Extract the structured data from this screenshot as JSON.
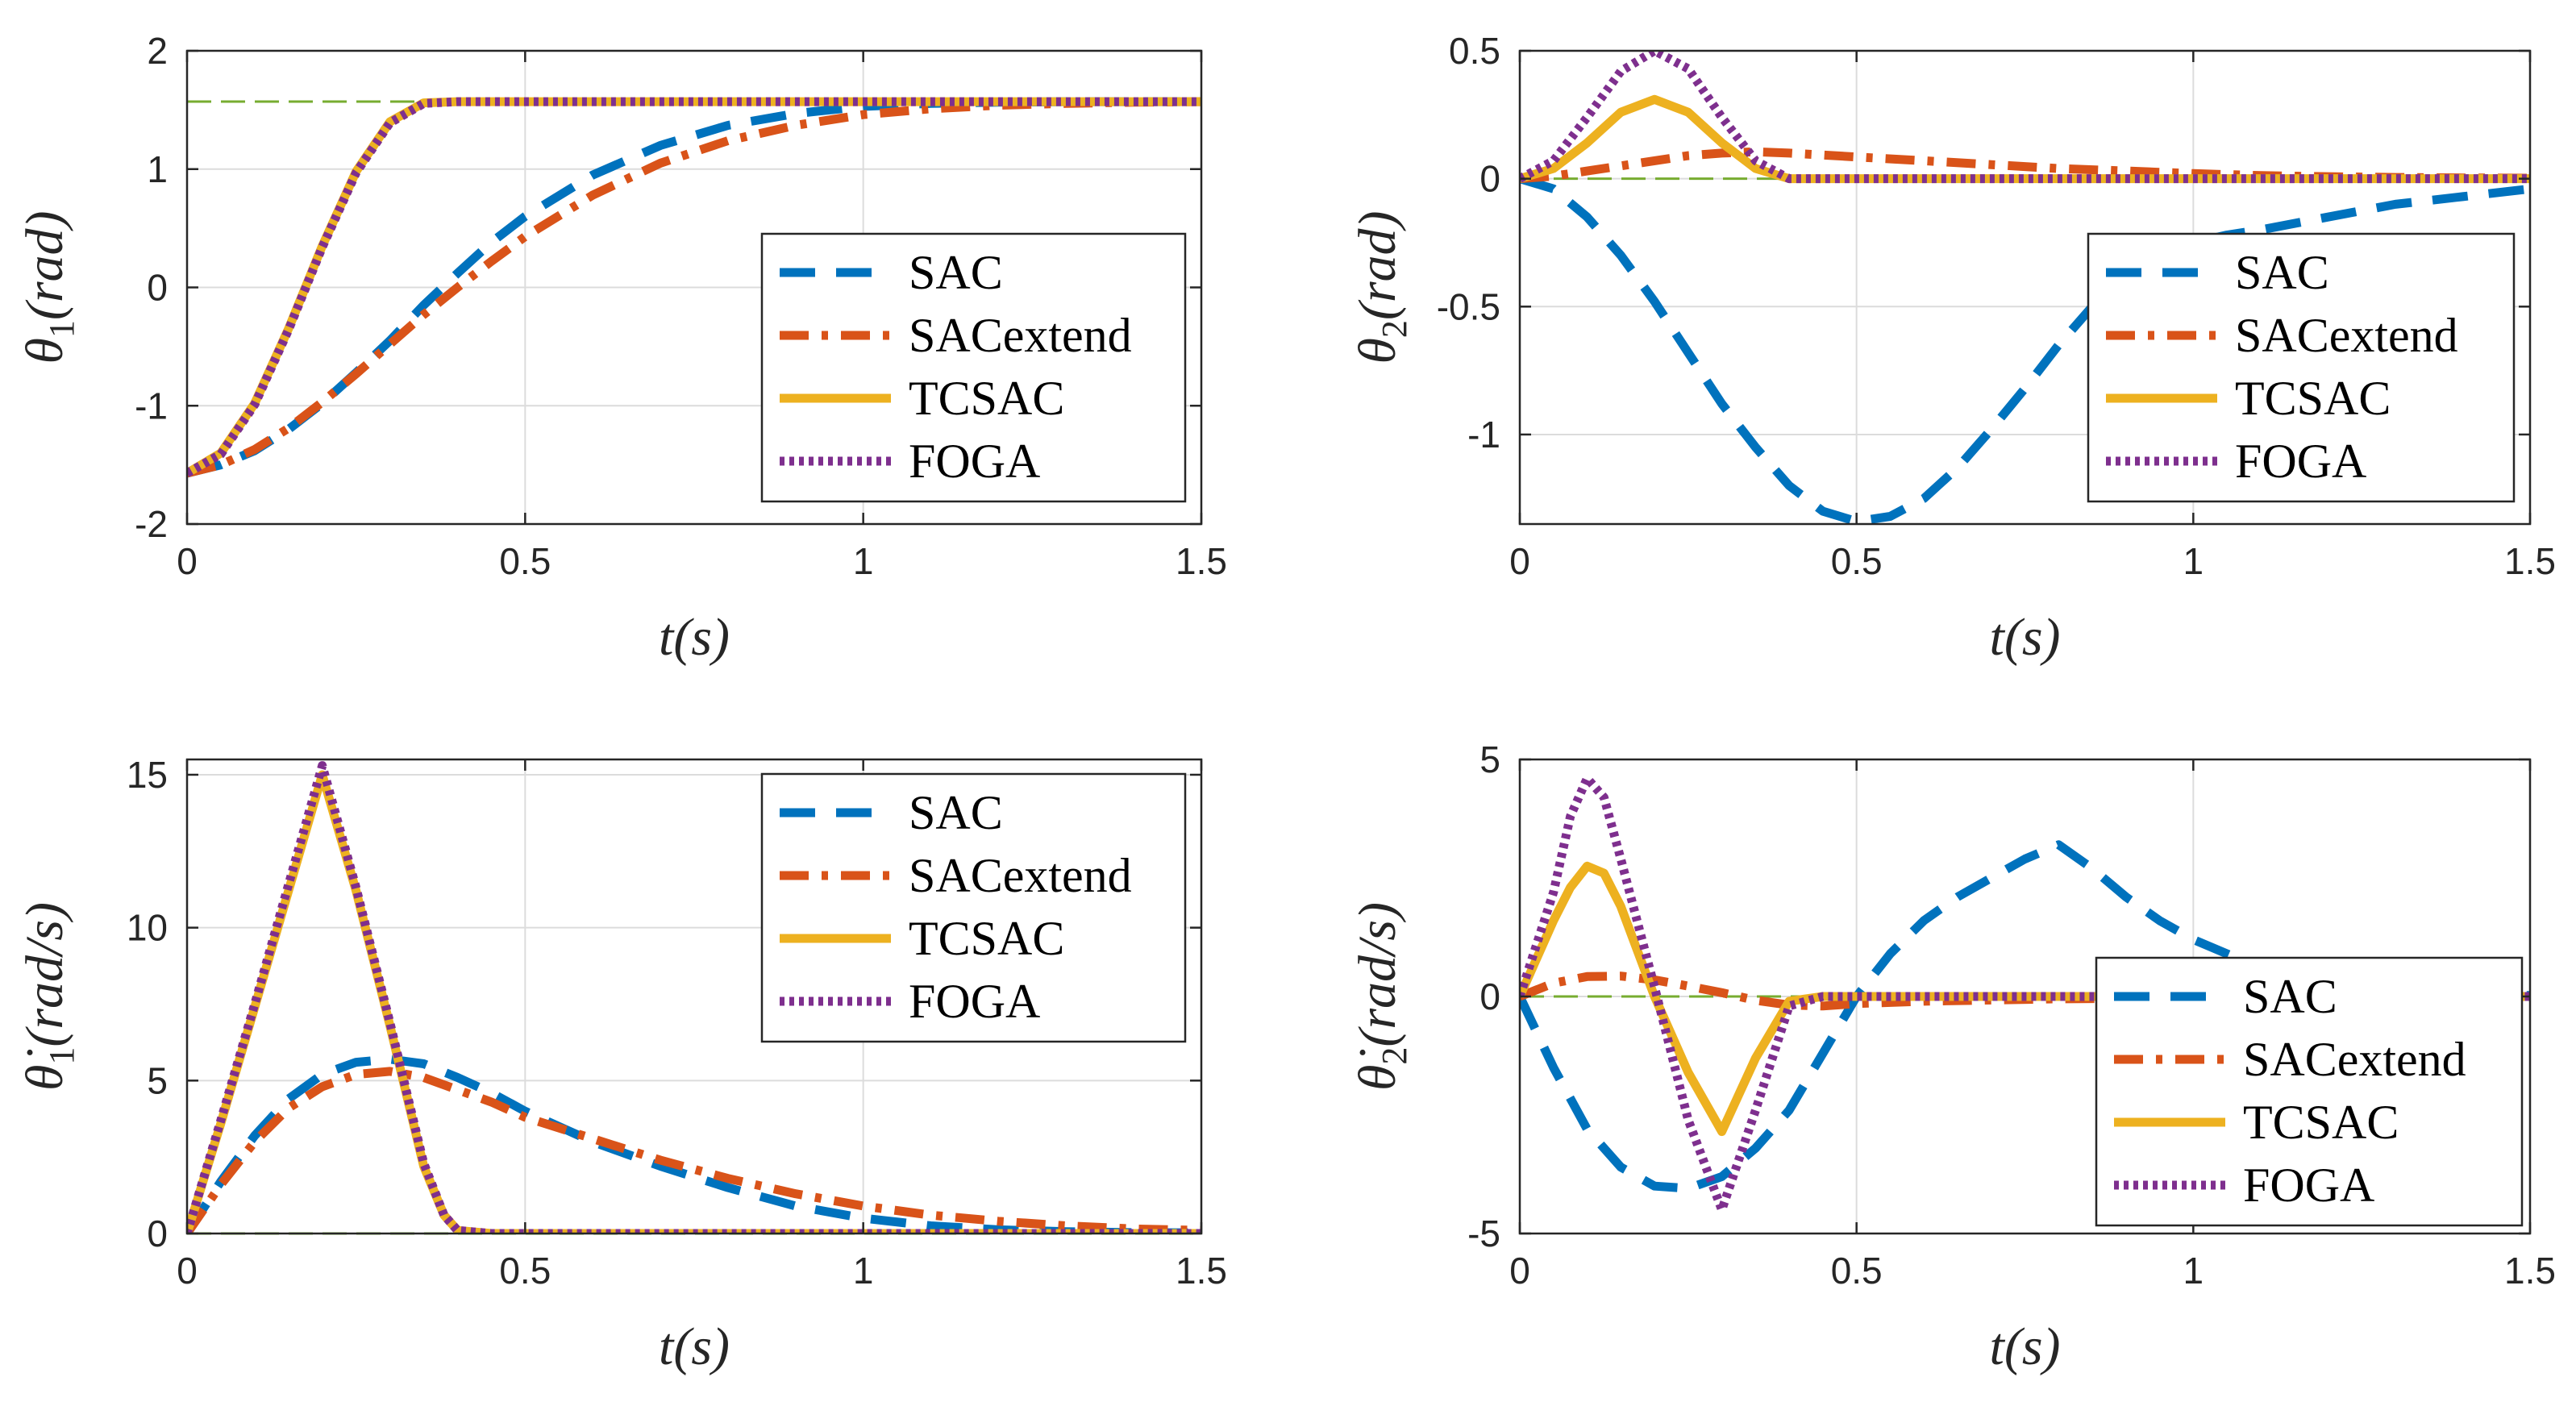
{
  "colors": {
    "SAC": "#0072BD",
    "SACextend": "#D95319",
    "TCSAC": "#EDB120",
    "FOGA": "#7E2F8E",
    "reference": "#77AC30",
    "grid": "#dcdcdc",
    "axis": "#262626"
  },
  "chart_data": [
    {
      "type": "line",
      "id": "theta1",
      "title": "",
      "xlabel": "t(s)",
      "ylabel": "θ1(rad)",
      "ylabel_symbol": "θ",
      "ylabel_sub": "1",
      "ylabel_unit": "(rad)",
      "xlim": [
        0,
        1.5
      ],
      "ylim": [
        -2,
        2
      ],
      "xticks": [
        0,
        0.5,
        1,
        1.5
      ],
      "xtick_labels": [
        "0",
        "0.5",
        "1",
        "1.5"
      ],
      "yticks": [
        -2,
        -1,
        0,
        1,
        2
      ],
      "ytick_labels": [
        "-2",
        "-1",
        "0",
        "1",
        "2"
      ],
      "grid": true,
      "legend": "bottom-right",
      "reference": 1.571,
      "series": [
        {
          "name": "SAC",
          "style": "dashed",
          "x": [
            0,
            0.05,
            0.1,
            0.15,
            0.2,
            0.25,
            0.3,
            0.35,
            0.4,
            0.45,
            0.5,
            0.6,
            0.7,
            0.8,
            0.9,
            1.0,
            1.1,
            1.2,
            1.3,
            1.4,
            1.5
          ],
          "y": [
            -1.57,
            -1.5,
            -1.38,
            -1.2,
            -0.98,
            -0.72,
            -0.45,
            -0.15,
            0.12,
            0.38,
            0.6,
            0.95,
            1.2,
            1.37,
            1.47,
            1.53,
            1.555,
            1.565,
            1.57,
            1.57,
            1.57
          ]
        },
        {
          "name": "SACextend",
          "style": "dashdot",
          "x": [
            0,
            0.05,
            0.1,
            0.15,
            0.2,
            0.25,
            0.3,
            0.35,
            0.4,
            0.45,
            0.5,
            0.6,
            0.7,
            0.8,
            0.9,
            1.0,
            1.1,
            1.2,
            1.3,
            1.4,
            1.5
          ],
          "y": [
            -1.57,
            -1.5,
            -1.37,
            -1.19,
            -0.97,
            -0.73,
            -0.48,
            -0.23,
            0.0,
            0.22,
            0.43,
            0.78,
            1.05,
            1.24,
            1.37,
            1.46,
            1.51,
            1.54,
            1.555,
            1.565,
            1.57
          ]
        },
        {
          "name": "TCSAC",
          "style": "solid",
          "x": [
            0,
            0.05,
            0.1,
            0.15,
            0.2,
            0.25,
            0.3,
            0.35,
            0.4,
            0.45,
            0.5,
            0.6,
            0.8,
            1.0,
            1.2,
            1.5
          ],
          "y": [
            -1.57,
            -1.4,
            -0.98,
            -0.35,
            0.35,
            0.98,
            1.4,
            1.56,
            1.57,
            1.57,
            1.57,
            1.57,
            1.57,
            1.57,
            1.57,
            1.57
          ]
        },
        {
          "name": "FOGA",
          "style": "dotted",
          "x": [
            0,
            0.05,
            0.1,
            0.15,
            0.2,
            0.25,
            0.3,
            0.35,
            0.4,
            0.45,
            0.5,
            0.6,
            0.8,
            1.0,
            1.2,
            1.5
          ],
          "y": [
            -1.57,
            -1.41,
            -0.99,
            -0.36,
            0.34,
            0.97,
            1.39,
            1.555,
            1.57,
            1.57,
            1.57,
            1.57,
            1.57,
            1.57,
            1.57,
            1.57
          ]
        }
      ]
    },
    {
      "type": "line",
      "id": "theta2",
      "title": "",
      "xlabel": "t(s)",
      "ylabel": "θ2(rad)",
      "ylabel_symbol": "θ",
      "ylabel_sub": "2",
      "ylabel_unit": "(rad)",
      "xlim": [
        0,
        1.5
      ],
      "ylim": [
        -1.35,
        0.5
      ],
      "xticks": [
        0,
        0.5,
        1,
        1.5
      ],
      "xtick_labels": [
        "0",
        "0.5",
        "1",
        "1.5"
      ],
      "yticks": [
        -1,
        -0.5,
        0,
        0.5
      ],
      "ytick_labels": [
        "-1",
        "-0.5",
        "0",
        "0.5"
      ],
      "grid": true,
      "legend": "bottom-right",
      "reference": 0,
      "series": [
        {
          "name": "SAC",
          "style": "dashed",
          "x": [
            0,
            0.05,
            0.1,
            0.15,
            0.2,
            0.25,
            0.3,
            0.35,
            0.4,
            0.45,
            0.5,
            0.55,
            0.6,
            0.65,
            0.7,
            0.75,
            0.8,
            0.85,
            0.9,
            0.95,
            1.0,
            1.05,
            1.1,
            1.2,
            1.3,
            1.4,
            1.5
          ],
          "y": [
            0,
            -0.04,
            -0.15,
            -0.3,
            -0.48,
            -0.68,
            -0.88,
            -1.05,
            -1.2,
            -1.3,
            -1.34,
            -1.32,
            -1.25,
            -1.13,
            -0.98,
            -0.82,
            -0.65,
            -0.5,
            -0.38,
            -0.3,
            -0.25,
            -0.22,
            -0.2,
            -0.15,
            -0.1,
            -0.07,
            -0.04
          ]
        },
        {
          "name": "SACextend",
          "style": "dashdot",
          "x": [
            0,
            0.05,
            0.1,
            0.15,
            0.2,
            0.25,
            0.3,
            0.35,
            0.4,
            0.5,
            0.6,
            0.7,
            0.8,
            0.9,
            1.0,
            1.1,
            1.2,
            1.3,
            1.4,
            1.5
          ],
          "y": [
            0,
            0.01,
            0.03,
            0.05,
            0.07,
            0.09,
            0.1,
            0.105,
            0.1,
            0.085,
            0.07,
            0.055,
            0.04,
            0.03,
            0.02,
            0.012,
            0.008,
            0.005,
            0.003,
            0.002
          ]
        },
        {
          "name": "TCSAC",
          "style": "solid",
          "x": [
            0,
            0.05,
            0.1,
            0.15,
            0.2,
            0.25,
            0.3,
            0.35,
            0.4,
            0.5,
            0.6,
            0.8,
            1.0,
            1.2,
            1.5
          ],
          "y": [
            0,
            0.04,
            0.14,
            0.26,
            0.31,
            0.26,
            0.14,
            0.04,
            0.0,
            0,
            0,
            0,
            0,
            0,
            0
          ]
        },
        {
          "name": "FOGA",
          "style": "dotted",
          "x": [
            0,
            0.05,
            0.1,
            0.15,
            0.2,
            0.25,
            0.3,
            0.35,
            0.4,
            0.5,
            0.6,
            0.8,
            1.0,
            1.2,
            1.5
          ],
          "y": [
            0,
            0.07,
            0.24,
            0.42,
            0.5,
            0.43,
            0.24,
            0.07,
            0.0,
            0,
            0,
            0,
            0,
            0,
            0
          ]
        }
      ]
    },
    {
      "type": "line",
      "id": "theta1dot",
      "title": "",
      "xlabel": "t(s)",
      "ylabel": "θ̇1(rad/s)",
      "ylabel_symbol": "θ̇",
      "ylabel_sub": "1",
      "ylabel_unit": "(rad/s)",
      "xlim": [
        0,
        1.5
      ],
      "ylim": [
        0,
        15.5
      ],
      "xticks": [
        0,
        0.5,
        1,
        1.5
      ],
      "xtick_labels": [
        "0",
        "0.5",
        "1",
        "1.5"
      ],
      "yticks": [
        0,
        5,
        10,
        15
      ],
      "ytick_labels": [
        "0",
        "5",
        "10",
        "15"
      ],
      "grid": true,
      "legend": "top-right",
      "reference": 0,
      "series": [
        {
          "name": "SAC",
          "style": "dashed",
          "x": [
            0,
            0.05,
            0.1,
            0.15,
            0.2,
            0.25,
            0.3,
            0.35,
            0.4,
            0.45,
            0.5,
            0.6,
            0.7,
            0.8,
            0.9,
            1.0,
            1.1,
            1.2,
            1.3,
            1.4,
            1.5
          ],
          "y": [
            0,
            1.7,
            3.2,
            4.4,
            5.2,
            5.6,
            5.7,
            5.55,
            5.1,
            4.6,
            4.0,
            3.0,
            2.2,
            1.5,
            0.9,
            0.5,
            0.25,
            0.12,
            0.06,
            0.03,
            0.02
          ]
        },
        {
          "name": "SACextend",
          "style": "dashdot",
          "x": [
            0,
            0.05,
            0.1,
            0.15,
            0.2,
            0.25,
            0.3,
            0.35,
            0.4,
            0.45,
            0.5,
            0.6,
            0.7,
            0.8,
            0.9,
            1.0,
            1.1,
            1.2,
            1.3,
            1.4,
            1.5
          ],
          "y": [
            0,
            1.6,
            3.0,
            4.1,
            4.8,
            5.2,
            5.3,
            5.1,
            4.7,
            4.3,
            3.8,
            3.1,
            2.4,
            1.8,
            1.3,
            0.9,
            0.6,
            0.4,
            0.25,
            0.15,
            0.1
          ]
        },
        {
          "name": "TCSAC",
          "style": "solid",
          "x": [
            0,
            0.05,
            0.1,
            0.15,
            0.2,
            0.25,
            0.3,
            0.35,
            0.38,
            0.4,
            0.45,
            0.5,
            0.6,
            0.8,
            1.0,
            1.2,
            1.5
          ],
          "y": [
            0,
            3.6,
            7.4,
            11.2,
            15.0,
            11.2,
            6.8,
            2.2,
            0.6,
            0.1,
            0,
            0,
            0,
            0,
            0,
            0,
            0
          ]
        },
        {
          "name": "FOGA",
          "style": "dotted",
          "x": [
            0,
            0.05,
            0.1,
            0.15,
            0.2,
            0.25,
            0.3,
            0.35,
            0.38,
            0.4,
            0.45,
            0.5,
            0.6,
            0.8,
            1.0,
            1.2,
            1.5
          ],
          "y": [
            0,
            3.7,
            7.5,
            11.4,
            15.3,
            11.3,
            6.9,
            2.3,
            0.6,
            0.1,
            0,
            0,
            0,
            0,
            0,
            0,
            0
          ]
        }
      ]
    },
    {
      "type": "line",
      "id": "theta2dot",
      "title": "",
      "xlabel": "t(s)",
      "ylabel": "θ̇2(rad/s)",
      "ylabel_symbol": "θ̇",
      "ylabel_sub": "2",
      "ylabel_unit": "(rad/s)",
      "xlim": [
        0,
        1.5
      ],
      "ylim": [
        -5,
        5
      ],
      "xticks": [
        0,
        0.5,
        1,
        1.5
      ],
      "xtick_labels": [
        "0",
        "0.5",
        "1",
        "1.5"
      ],
      "yticks": [
        -5,
        0,
        5
      ],
      "ytick_labels": [
        "-5",
        "0",
        "5"
      ],
      "grid": true,
      "legend": "bottom-right",
      "reference": 0,
      "series": [
        {
          "name": "SAC",
          "style": "dashed",
          "x": [
            0,
            0.05,
            0.1,
            0.15,
            0.2,
            0.25,
            0.3,
            0.35,
            0.4,
            0.45,
            0.5,
            0.55,
            0.6,
            0.65,
            0.7,
            0.75,
            0.8,
            0.85,
            0.9,
            0.95,
            1.0,
            1.05,
            1.1,
            1.15,
            1.2,
            1.3,
            1.4,
            1.5
          ],
          "y": [
            0,
            -1.5,
            -2.8,
            -3.6,
            -4.0,
            -4.05,
            -3.8,
            -3.2,
            -2.4,
            -1.2,
            0.0,
            0.9,
            1.6,
            2.1,
            2.5,
            2.9,
            3.2,
            2.7,
            2.1,
            1.6,
            1.2,
            0.9,
            0.6,
            0.4,
            0.25,
            0.1,
            0.04,
            0.02
          ]
        },
        {
          "name": "SACextend",
          "style": "dashdot",
          "x": [
            0,
            0.05,
            0.1,
            0.15,
            0.2,
            0.25,
            0.3,
            0.35,
            0.4,
            0.45,
            0.5,
            0.6,
            0.8,
            1.0,
            1.2,
            1.5
          ],
          "y": [
            0,
            0.28,
            0.42,
            0.43,
            0.35,
            0.22,
            0.08,
            -0.08,
            -0.18,
            -0.2,
            -0.15,
            -0.1,
            -0.05,
            -0.03,
            -0.01,
            0
          ]
        },
        {
          "name": "TCSAC",
          "style": "solid",
          "x": [
            0,
            0.05,
            0.075,
            0.1,
            0.125,
            0.15,
            0.2,
            0.25,
            0.3,
            0.35,
            0.4,
            0.45,
            0.5,
            0.6,
            0.8,
            1.0,
            1.2,
            1.5
          ],
          "y": [
            0,
            1.6,
            2.3,
            2.75,
            2.6,
            1.9,
            0.0,
            -1.6,
            -2.85,
            -1.3,
            -0.1,
            0,
            0,
            0,
            0,
            0,
            0,
            0
          ]
        },
        {
          "name": "FOGA",
          "style": "dotted",
          "x": [
            0,
            0.05,
            0.075,
            0.1,
            0.125,
            0.15,
            0.2,
            0.25,
            0.3,
            0.35,
            0.4,
            0.45,
            0.5,
            0.6,
            0.8,
            1.0,
            1.2,
            1.5
          ],
          "y": [
            0,
            2.2,
            3.8,
            4.6,
            4.2,
            2.9,
            0.2,
            -2.6,
            -4.5,
            -2.4,
            -0.2,
            0,
            0,
            0,
            0,
            0,
            0,
            0
          ]
        }
      ]
    }
  ]
}
